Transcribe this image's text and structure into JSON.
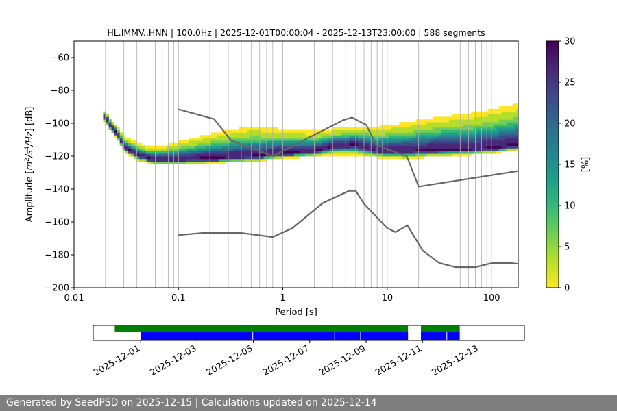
{
  "chart_data": {
    "type": "heatmap",
    "title": "HL.IMMV..HNN | 100.0Hz | 2025-12-01T00:00:04 - 2025-12-13T23:00:00 | 588 segments",
    "xlabel": "Period [s]",
    "ylabel_parts": [
      "Amplitude [",
      "m",
      "2",
      "/",
      "s",
      "4",
      "/",
      "Hz",
      "] [dB]"
    ],
    "x_scale": "log",
    "xlim": [
      0.01,
      180
    ],
    "ylim": [
      -200,
      -50
    ],
    "x_tick_labels": [
      "0.01",
      "0.1",
      "1",
      "10",
      "100"
    ],
    "x_tick_values": [
      0.01,
      0.1,
      1,
      10,
      100
    ],
    "y_tick_values": [
      -200,
      -180,
      -160,
      -140,
      -120,
      -100,
      -80,
      -60
    ],
    "y_tick_labels": [
      "−200",
      "−180",
      "−160",
      "−140",
      "−120",
      "−100",
      "−80",
      "−60"
    ],
    "grid": "vertical",
    "colorbar": {
      "label": "[%]",
      "range": [
        0,
        30
      ],
      "ticks": [
        0,
        5,
        10,
        15,
        20,
        25,
        30
      ],
      "tick_labels": [
        "0",
        "5",
        "10",
        "15",
        "20",
        "25",
        "30"
      ],
      "colormap": [
        "#fde725",
        "#b5de2b",
        "#6ece58",
        "#35b779",
        "#1f9e89",
        "#26828e",
        "#31688e",
        "#3e4989",
        "#482878",
        "#440154"
      ]
    },
    "series": [
      {
        "name": "mode",
        "points": [
          [
            0.02,
            -96
          ],
          [
            0.022,
            -101
          ],
          [
            0.026,
            -106
          ],
          [
            0.03,
            -114
          ],
          [
            0.04,
            -119
          ],
          [
            0.06,
            -122
          ],
          [
            0.1,
            -122
          ],
          [
            0.2,
            -121
          ],
          [
            0.5,
            -120
          ],
          [
            1,
            -118
          ],
          [
            2,
            -117
          ],
          [
            3,
            -114
          ],
          [
            5,
            -113
          ],
          [
            8,
            -117
          ],
          [
            15,
            -117
          ],
          [
            30,
            -116
          ],
          [
            60,
            -116
          ],
          [
            100,
            -115
          ],
          [
            180,
            -113
          ]
        ]
      },
      {
        "name": "upper_envelope",
        "points": [
          [
            0.02,
            -93
          ],
          [
            0.03,
            -106
          ],
          [
            0.05,
            -112
          ],
          [
            0.08,
            -110
          ],
          [
            0.12,
            -106
          ],
          [
            0.2,
            -102
          ],
          [
            0.3,
            -99
          ],
          [
            0.5,
            -96
          ],
          [
            1,
            -99
          ],
          [
            2,
            -101
          ],
          [
            4,
            -99
          ],
          [
            8,
            -97
          ],
          [
            15,
            -94
          ],
          [
            30,
            -90
          ],
          [
            60,
            -87
          ],
          [
            100,
            -84
          ],
          [
            180,
            -80
          ]
        ]
      },
      {
        "name": "lower_envelope",
        "points": [
          [
            0.02,
            -99
          ],
          [
            0.03,
            -118
          ],
          [
            0.05,
            -125
          ],
          [
            0.1,
            -125
          ],
          [
            0.3,
            -124
          ],
          [
            0.6,
            -124
          ],
          [
            1,
            -122
          ],
          [
            3,
            -121
          ],
          [
            8,
            -122
          ],
          [
            15,
            -123
          ],
          [
            25,
            -122
          ],
          [
            40,
            -121
          ],
          [
            80,
            -119
          ],
          [
            180,
            -117
          ]
        ]
      },
      {
        "name": "NHNM",
        "color": "#666666",
        "points": [
          [
            0.1,
            -91.5
          ],
          [
            0.22,
            -97.4
          ],
          [
            0.32,
            -110.5
          ],
          [
            0.8,
            -120
          ],
          [
            3.8,
            -98
          ],
          [
            4.6,
            -96.5
          ],
          [
            6.3,
            -101
          ],
          [
            7.9,
            -113.5
          ],
          [
            15.4,
            -120
          ],
          [
            20,
            -138.5
          ],
          [
            180,
            -129
          ]
        ]
      },
      {
        "name": "NLNM",
        "color": "#666666",
        "points": [
          [
            0.1,
            -168
          ],
          [
            0.17,
            -166.7
          ],
          [
            0.4,
            -166.7
          ],
          [
            0.8,
            -169.2
          ],
          [
            1.24,
            -163.7
          ],
          [
            2.4,
            -148.6
          ],
          [
            4.3,
            -141.1
          ],
          [
            5,
            -141.1
          ],
          [
            6,
            -149
          ],
          [
            10,
            -163.8
          ],
          [
            12,
            -166.2
          ],
          [
            15.6,
            -162.1
          ],
          [
            21.9,
            -177.5
          ],
          [
            31.6,
            -185
          ],
          [
            45,
            -187.5
          ],
          [
            70,
            -187.5
          ],
          [
            101,
            -185
          ],
          [
            154,
            -185
          ],
          [
            180,
            -185.5
          ]
        ]
      }
    ],
    "timeline": {
      "date_labels": [
        "2025-12-01",
        "2025-12-03",
        "2025-12-05",
        "2025-12-07",
        "2025-12-09",
        "2025-12-11",
        "2025-12-13"
      ],
      "green_segments": [
        [
          0.05,
          0.73
        ],
        [
          0.76,
          0.85
        ]
      ],
      "blue_segments": [
        [
          0.11,
          0.73
        ],
        [
          0.76,
          0.85
        ]
      ],
      "blue_gaps": [
        0.37,
        0.56,
        0.62,
        0.75,
        0.82
      ]
    }
  },
  "footer": {
    "text": "Generated by SeedPSD on 2025-12-15 | Calculations updated on 2025-12-14"
  }
}
